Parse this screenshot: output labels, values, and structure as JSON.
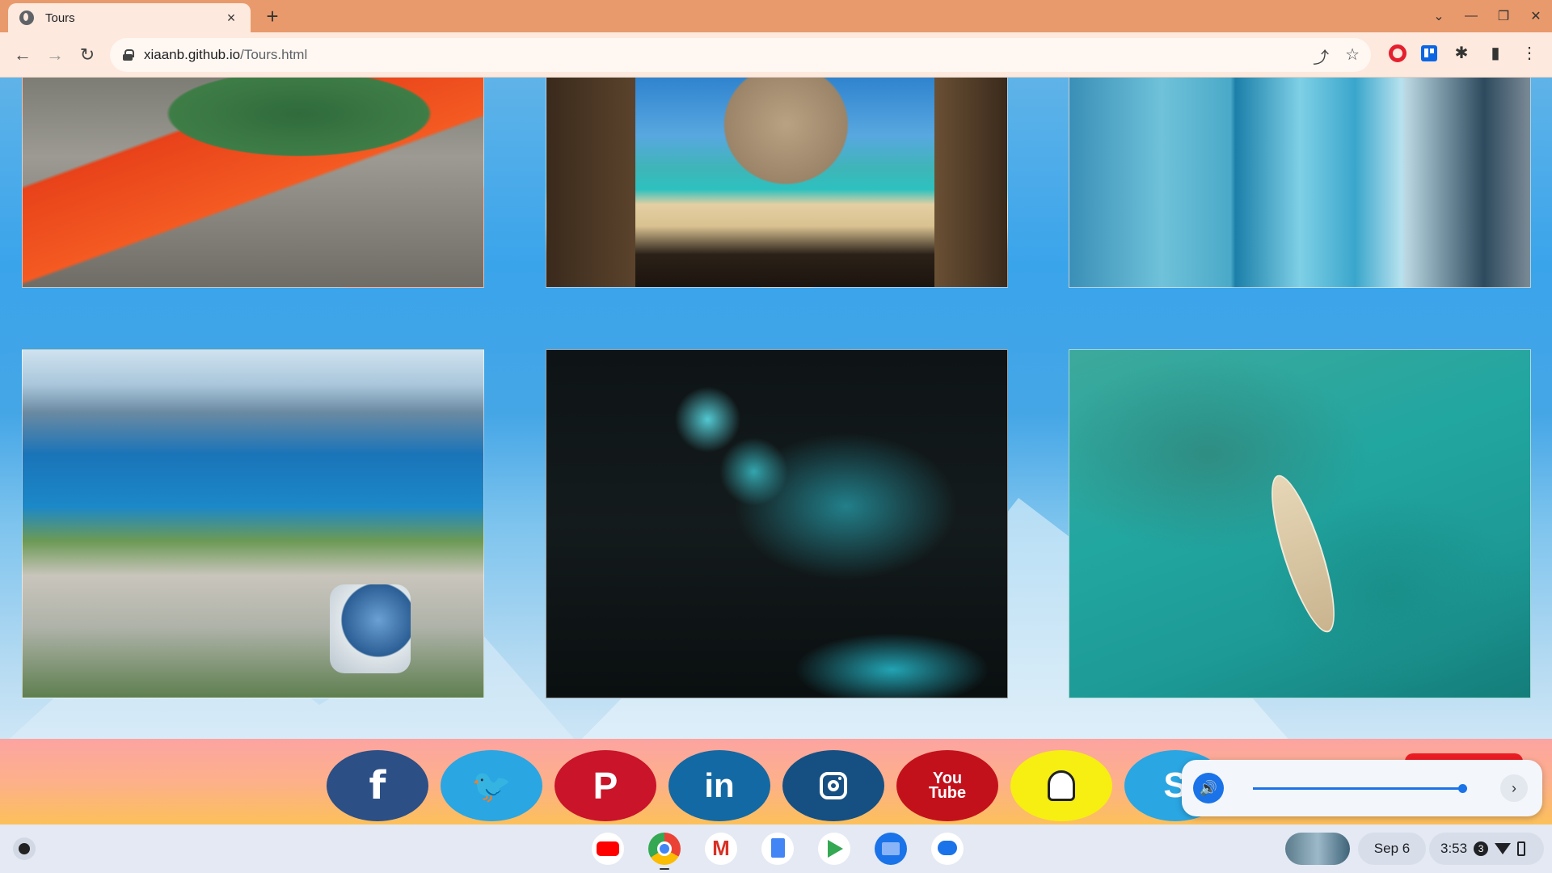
{
  "browser": {
    "tab_title": "Tours",
    "tab_close": "×",
    "new_tab": "+",
    "url_host": "xiaanb.github.io",
    "url_path": "/Tours.html",
    "window_controls": [
      "⌄",
      "—",
      "❐",
      "✕"
    ]
  },
  "page": {
    "gallery": [
      {
        "subject": "Geothermal hot spring"
      },
      {
        "subject": "Cathedral Cove beach"
      },
      {
        "subject": "Glacier ice climbing"
      },
      {
        "subject": "Queenstown gondola"
      },
      {
        "subject": "Glowworm cave"
      },
      {
        "subject": "Kayaking turquoise water"
      }
    ]
  },
  "footer": {
    "social": [
      {
        "network": "Facebook",
        "glyph": "f",
        "color": "#2c4f86"
      },
      {
        "network": "Twitter",
        "glyph": "🐦",
        "color": "#2aa6e3"
      },
      {
        "network": "Pinterest",
        "glyph": "P",
        "color": "#c9142a"
      },
      {
        "network": "LinkedIn",
        "glyph": "in",
        "color": "#1369a3"
      },
      {
        "network": "Instagram",
        "color": "#165083"
      },
      {
        "network": "YouTube",
        "glyph_top": "You",
        "glyph_bottom": "Tube",
        "color": "#c3111c"
      },
      {
        "network": "Snapchat",
        "color": "#f7ee12"
      },
      {
        "network": "Skype",
        "glyph": "S",
        "color": "#2aa6e3"
      }
    ]
  },
  "volume_popup": {
    "level": 0.98,
    "icon": "speaker-icon",
    "next": "›"
  },
  "shelf": {
    "apps": [
      "YouTube",
      "Chrome",
      "Gmail",
      "Docs",
      "Play Store",
      "Files",
      "Messages"
    ],
    "date": "Sep 6",
    "time": "3:53",
    "notification_count": "3"
  }
}
